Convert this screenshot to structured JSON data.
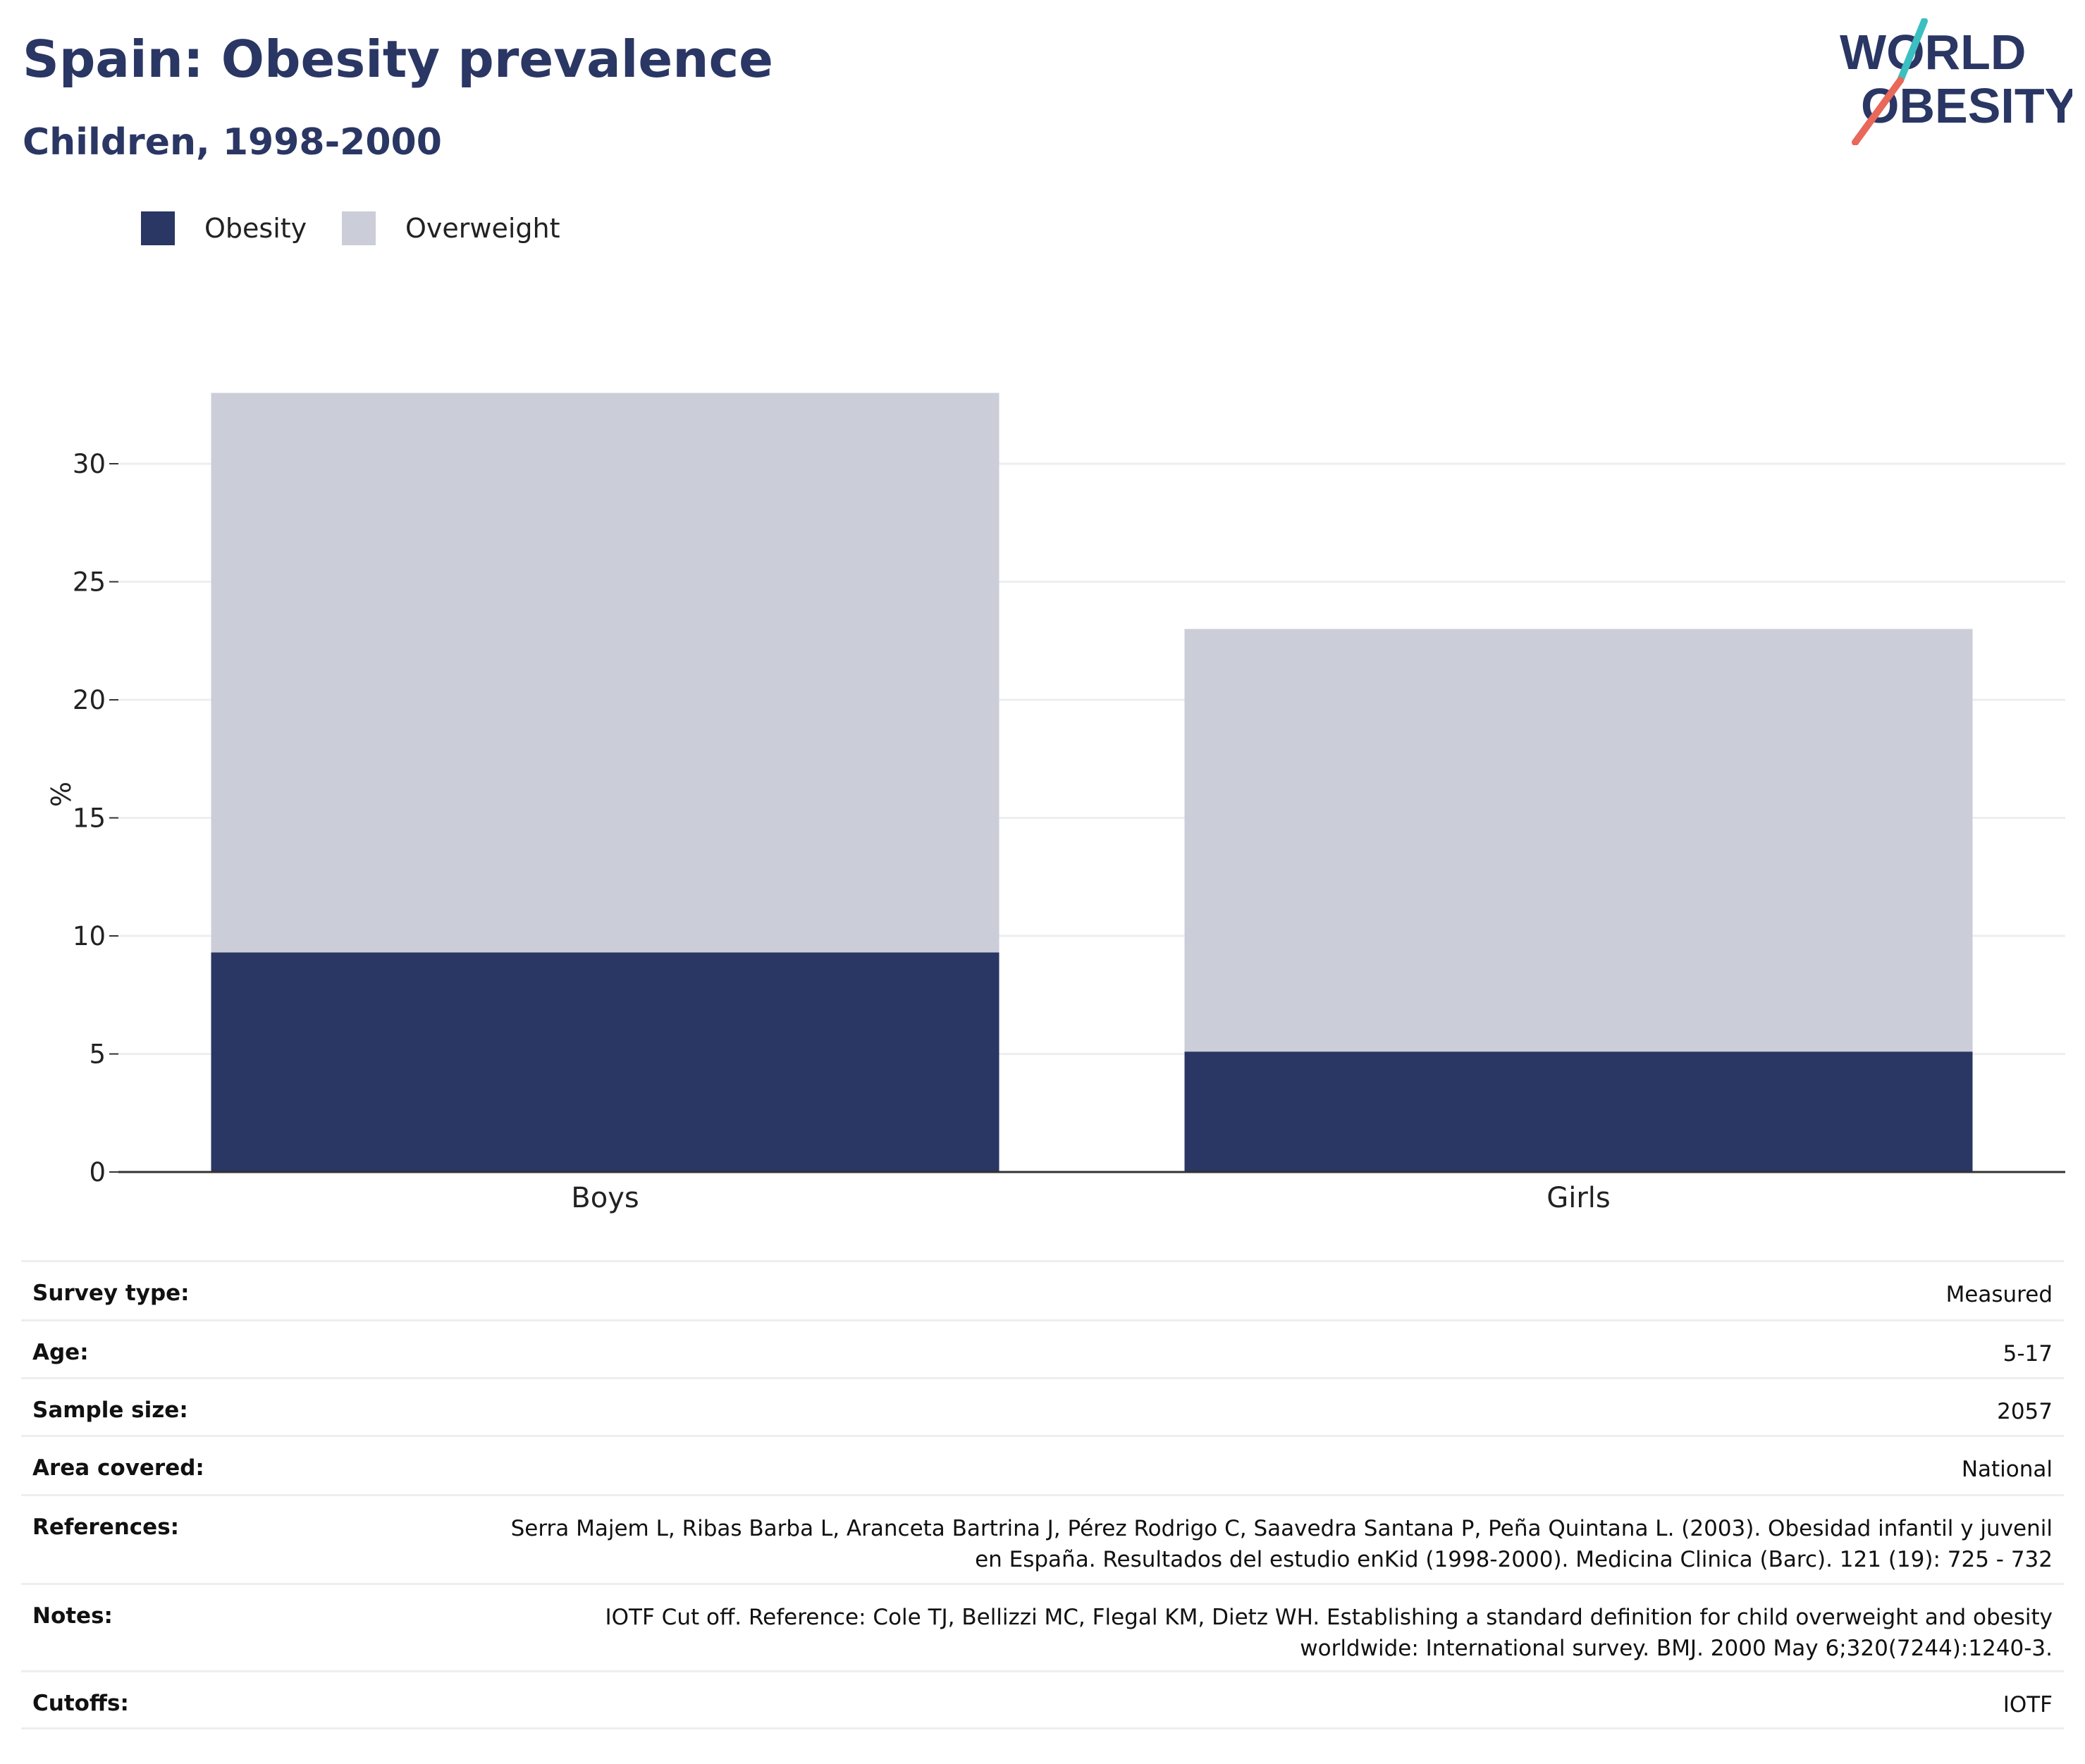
{
  "header": {
    "title": "Spain: Obesity prevalence",
    "subtitle": "Children, 1998-2000"
  },
  "logo": {
    "line1": "WORLD",
    "line2": "OBESITY",
    "colors": {
      "text": "#2a3663",
      "slash_top": "#3bbfc1",
      "slash_bottom": "#e8685a"
    }
  },
  "legend": {
    "items": [
      {
        "label": "Obesity",
        "color": "#2a3663"
      },
      {
        "label": "Overweight",
        "color": "#cbcdd9"
      }
    ]
  },
  "chart_data": {
    "type": "bar",
    "stacked": true,
    "categories": [
      "Boys",
      "Girls"
    ],
    "series": [
      {
        "name": "Obesity",
        "color": "#2a3663",
        "values": [
          9.3,
          5.1
        ]
      },
      {
        "name": "Overweight",
        "color": "#cbcdd9",
        "values": [
          23.7,
          17.9
        ]
      }
    ],
    "ylabel": "%",
    "xlabel": "",
    "ylim": [
      0,
      33
    ],
    "yticks": [
      0,
      5,
      10,
      15,
      20,
      25,
      30
    ],
    "grid": true,
    "legend_position": "top-left"
  },
  "meta": {
    "rows": [
      {
        "key": "Survey type:",
        "value": "Measured"
      },
      {
        "key": "Age:",
        "value": "5-17"
      },
      {
        "key": "Sample size:",
        "value": "2057"
      },
      {
        "key": "Area covered:",
        "value": "National"
      },
      {
        "key": "References:",
        "value": "Serra Majem L, Ribas Barba L, Aranceta Bartrina J, Pérez Rodrigo C, Saavedra Santana P, Peña Quintana L. (2003). Obesidad infantil y juvenil en España. Resultados del estudio enKid (1998-2000). Medicina Clinica (Barc). 121 (19): 725 - 732"
      },
      {
        "key": "Notes:",
        "value": "IOTF Cut off. Reference: Cole TJ, Bellizzi MC, Flegal KM, Dietz WH. Establishing a standard definition for child overweight and obesity worldwide: International survey. BMJ. 2000 May 6;320(7244):1240-3."
      },
      {
        "key": "Cutoffs:",
        "value": "IOTF"
      }
    ]
  }
}
